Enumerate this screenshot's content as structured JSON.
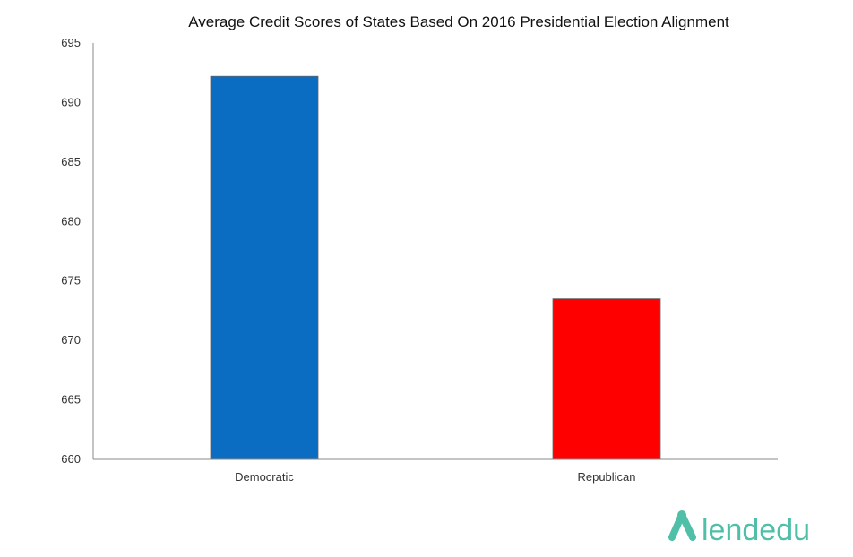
{
  "chart_data": {
    "type": "bar",
    "title": "Average Credit Scores of States Based On 2016 Presidential Election Alignment",
    "xlabel": "",
    "ylabel": "",
    "categories": [
      "Democratic",
      "Republican"
    ],
    "values": [
      692.2,
      673.5
    ],
    "colors": [
      "#0a6dc2",
      "#ff0000"
    ],
    "ylim": [
      660,
      695
    ],
    "yticks": [
      "660",
      "665",
      "670",
      "675",
      "680",
      "685",
      "690",
      "695"
    ],
    "grid": false,
    "legend": "none"
  },
  "logo": {
    "text": "lendedu",
    "color": "#4fbfa8"
  }
}
